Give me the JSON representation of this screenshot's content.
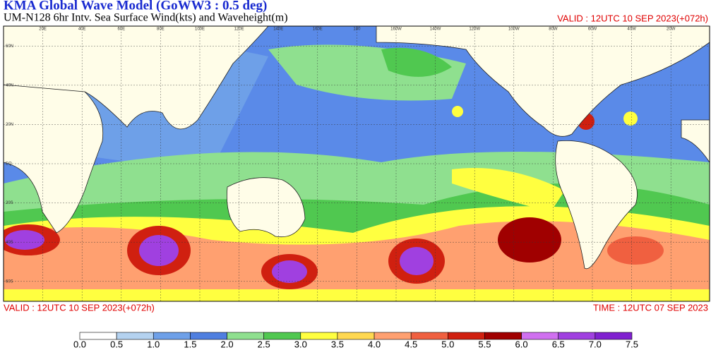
{
  "header": {
    "title": "KMA  Global Wave Model (GoWW3 : 0.5 deg)",
    "subtitle": "UM-N128  6hr Intv. Sea Surface Wind(kts) and Waveheight(m)",
    "valid_top": "VALID : 12UTC 10 SEP 2023(+072h)"
  },
  "map": {
    "lon_labels": [
      "20E",
      "40E",
      "60E",
      "80E",
      "100E",
      "120E",
      "140E",
      "160E",
      "180",
      "160W",
      "140W",
      "120W",
      "100W",
      "80W",
      "60W",
      "40W",
      "20W"
    ],
    "lat_labels": [
      "60N",
      "40N",
      "20N",
      "EQ",
      "20S",
      "40S",
      "60S"
    ]
  },
  "footer": {
    "valid": "VALID : 12UTC 10 SEP 2023(+072h)",
    "time": "TIME : 12UTC 07 SEP 2023"
  },
  "colorbar": {
    "ticks": [
      {
        "value": 0,
        "label": "0.0"
      },
      {
        "value": 0.5,
        "label": "0.5"
      },
      {
        "value": 1,
        "label": "1.0"
      },
      {
        "value": 1.5,
        "label": "1.5"
      },
      {
        "value": 2,
        "label": "2.0"
      },
      {
        "value": 2.5,
        "label": "2.5"
      },
      {
        "value": 3,
        "label": "3.0"
      },
      {
        "value": 3.5,
        "label": "3.5"
      },
      {
        "value": 4,
        "label": "4.0"
      },
      {
        "value": 4.5,
        "label": "4.5"
      },
      {
        "value": 5,
        "label": "5.0"
      },
      {
        "value": 5.5,
        "label": "5.5"
      },
      {
        "value": 6,
        "label": "6.0"
      },
      {
        "value": 6.5,
        "label": "6.5"
      },
      {
        "value": 7,
        "label": "7.0"
      },
      {
        "value": 7.5,
        "label": "7.5"
      }
    ],
    "colors": [
      "#ffffff",
      "#b4d2f0",
      "#6ea0e8",
      "#4f7fe0",
      "#8fe08f",
      "#50c850",
      "#ffff40",
      "#ffd850",
      "#ffa070",
      "#f06040",
      "#d02010",
      "#a00000",
      "#d070f0",
      "#a040e0",
      "#8020d0"
    ]
  }
}
